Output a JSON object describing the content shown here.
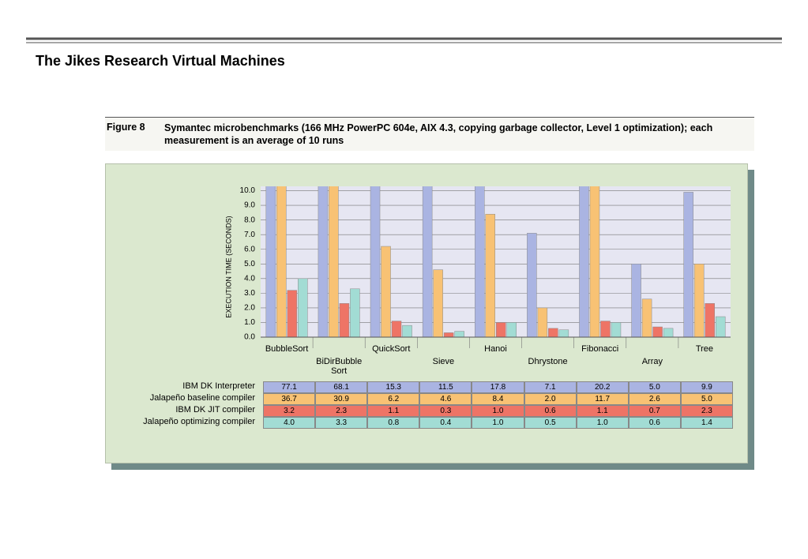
{
  "slide_title": "The Jikes Research Virtual Machines",
  "chart_data": {
    "type": "bar",
    "title": "Figure 8",
    "subtitle": "Symantec microbenchmarks (166 MHz PowerPC 604e, AIX 4.3, copying garbage collector, Level 1 optimization); each measurement is an average of 10 runs",
    "ylabel": "EXECUTION TIME (SECONDS)",
    "categories": [
      "BubbleSort",
      "BiDirBubble Sort",
      "QuickSort",
      "Sieve",
      "Hanoi",
      "Dhrystone",
      "Fibonacci",
      "Array",
      "Tree"
    ],
    "series": [
      {
        "name": "IBM DK Interpreter",
        "color": "#aab4e2",
        "values": [
          77.1,
          68.1,
          15.3,
          11.5,
          17.8,
          7.1,
          20.2,
          5.0,
          9.9
        ],
        "value_labels": [
          "77.1",
          "68.1",
          "15.3",
          "11.5",
          "17.8",
          "7.1",
          "20.2",
          "5.0",
          "9.9"
        ]
      },
      {
        "name": "Jalapeño baseline compiler",
        "color": "#f8c274",
        "values": [
          36.7,
          30.9,
          6.2,
          4.6,
          8.4,
          2.0,
          11.7,
          2.6,
          5.0
        ],
        "value_labels": [
          "36.7",
          "30.9",
          "6.2",
          "4.6",
          "8.4",
          "2.0",
          "11.7",
          "2.6",
          "5.0"
        ]
      },
      {
        "name": "IBM DK JIT compiler",
        "color": "#ee7466",
        "values": [
          3.2,
          2.3,
          1.1,
          0.3,
          1.0,
          0.6,
          1.1,
          0.7,
          2.3
        ],
        "value_labels": [
          "3.2",
          "2.3",
          "1.1",
          "0.3",
          "1.0",
          "0.6",
          "1.1",
          "0.7",
          "2.3"
        ]
      },
      {
        "name": "Jalapeño optimizing compiler",
        "color": "#a2dcd4",
        "values": [
          4.0,
          3.3,
          0.8,
          0.4,
          1.0,
          0.5,
          1.0,
          0.6,
          1.4
        ],
        "value_labels": [
          "4.0",
          "3.3",
          "0.8",
          "0.4",
          "1.0",
          "0.5",
          "1.0",
          "0.6",
          "1.4"
        ]
      }
    ],
    "ylim": [
      0,
      10.3
    ],
    "yticks": [
      {
        "value": 0,
        "label": "0.0"
      },
      {
        "value": 1,
        "label": "1.0"
      },
      {
        "value": 2,
        "label": "2.0"
      },
      {
        "value": 3,
        "label": "3.0"
      },
      {
        "value": 4,
        "label": "4.0"
      },
      {
        "value": 5,
        "label": "5.0"
      },
      {
        "value": 6,
        "label": "6.0"
      },
      {
        "value": 7,
        "label": "7.0"
      },
      {
        "value": 8,
        "label": "8.0"
      },
      {
        "value": 9,
        "label": "9.0"
      },
      {
        "value": 10,
        "label": "10.0"
      }
    ],
    "grid": true
  }
}
